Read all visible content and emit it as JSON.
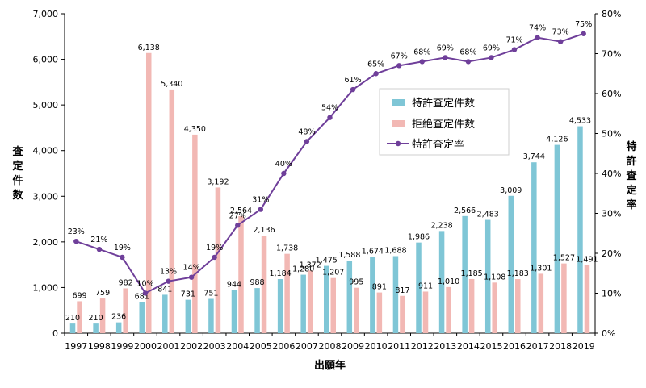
{
  "chart_data": {
    "type": "bar",
    "categories": [
      "1997",
      "1998",
      "1999",
      "2000",
      "2001",
      "2002",
      "2003",
      "2004",
      "2005",
      "2006",
      "2007",
      "2008",
      "2009",
      "2010",
      "2011",
      "2012",
      "2013",
      "2014",
      "2015",
      "2016",
      "2017",
      "2018",
      "2019"
    ],
    "series": [
      {
        "name": "特許査定件数",
        "type": "bar",
        "axis": "left",
        "color": "#7fc6d6",
        "values": [
          210,
          210,
          236,
          681,
          841,
          731,
          751,
          944,
          988,
          1184,
          1280,
          1475,
          1588,
          1674,
          1688,
          1986,
          2238,
          2566,
          2483,
          3009,
          3744,
          4126,
          4533
        ],
        "labels": [
          "210",
          "210",
          "236",
          "681",
          "841",
          "731",
          "751",
          "944",
          "988",
          "1,184",
          "1,280",
          "1,475",
          "1,588",
          "1,674",
          "1,688",
          "1,986",
          "2,238",
          "2,566",
          "2,483",
          "3,009",
          "3,744",
          "4,126",
          "4,533"
        ]
      },
      {
        "name": "拒絶査定件数",
        "type": "bar",
        "axis": "left",
        "color": "#f2b8b4",
        "values": [
          699,
          759,
          982,
          6138,
          5340,
          4350,
          3192,
          2564,
          2136,
          1738,
          1372,
          1207,
          995,
          891,
          817,
          911,
          1010,
          1185,
          1108,
          1183,
          1301,
          1527,
          1491
        ],
        "labels": [
          "699",
          "759",
          "982",
          "6,138",
          "5,340",
          "4,350",
          "3,192",
          "2,564",
          "2,136",
          "1,738",
          "1,372",
          "1,207",
          "995",
          "891",
          "817",
          "911",
          "1,010",
          "1,185",
          "1,108",
          "1,183",
          "1,301",
          "1,527",
          "1,491"
        ]
      },
      {
        "name": "特許査定率",
        "type": "line",
        "axis": "right",
        "color": "#6f3f9a",
        "values": [
          23,
          21,
          19,
          10,
          13,
          14,
          19,
          27,
          31,
          40,
          48,
          54,
          61,
          65,
          67,
          68,
          69,
          68,
          69,
          71,
          74,
          73,
          75
        ],
        "labels": [
          "23%",
          "21%",
          "19%",
          "10%",
          "13%",
          "14%",
          "19%",
          "27%",
          "31%",
          "40%",
          "48%",
          "54%",
          "61%",
          "65%",
          "67%",
          "68%",
          "69%",
          "68%",
          "69%",
          "71%",
          "74%",
          "73%",
          "75%"
        ]
      }
    ],
    "xlabel": "出願年",
    "ylabel_left": "査定件数",
    "ylabel_right": "特許査定率",
    "ylim_left": [
      0,
      7000
    ],
    "ylim_right": [
      0,
      80
    ],
    "yticks_left": [
      "0",
      "1,000",
      "2,000",
      "3,000",
      "4,000",
      "5,000",
      "6,000",
      "7,000"
    ],
    "yticks_right": [
      "0%",
      "10%",
      "20%",
      "30%",
      "40%",
      "50%",
      "60%",
      "70%",
      "80%"
    ],
    "grid": false,
    "legend_position": "right-center"
  }
}
